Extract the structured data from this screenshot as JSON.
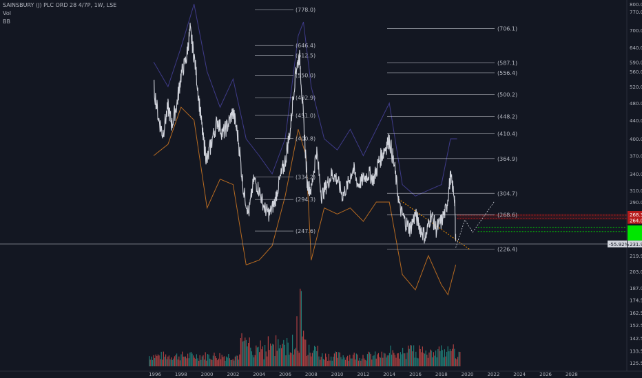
{
  "header": {
    "symbol_line": "SAINSBURY (J) PLC ORD 28 4/7P, 1W, LSE",
    "indicator_1": "Vol",
    "indicator_2": "BB"
  },
  "chart_data": {
    "type": "line",
    "title": "SAINSBURY (J) PLC ORD 28 4/7P, 1W, LSE",
    "indicators": [
      "Vol",
      "BB"
    ],
    "x_ticks": [
      "1996",
      "1998",
      "2000",
      "2002",
      "2004",
      "2006",
      "2008",
      "2010",
      "2012",
      "2014",
      "2016",
      "2018",
      "2020",
      "2022",
      "2024",
      "2026",
      "2028"
    ],
    "y_ticks": [
      "800.0",
      "770.0",
      "700.0",
      "640.0",
      "590.0",
      "560.0",
      "520.0",
      "480.0",
      "440.0",
      "400.0",
      "370.0",
      "340.0",
      "310.0",
      "290.0",
      "268.3",
      "264.0",
      "231.9",
      "219.9",
      "203.0",
      "187.0",
      "174.5",
      "162.5",
      "152.5",
      "142.5",
      "133.5",
      "125.5"
    ],
    "levels_group_1": [
      778.0,
      646.4,
      612.5,
      550.0,
      492.9,
      451.0,
      400.8,
      334.2,
      294.3,
      247.6
    ],
    "levels_group_2": [
      706.1,
      587.1,
      556.4,
      500.2,
      448.2,
      410.4,
      364.9,
      304.7,
      268.6,
      226.4
    ],
    "price_series": {
      "name": "",
      "x": [
        1995.9,
        1996.3,
        1996.6,
        1997.0,
        1997.3,
        1997.7,
        1998.0,
        1998.4,
        1998.7,
        1999.0,
        1999.4,
        1999.7,
        2000.0,
        2000.4,
        2000.8,
        2001.2,
        2001.6,
        2002.0,
        2002.4,
        2002.8,
        2003.2,
        2003.6,
        2004.0,
        2004.4,
        2004.8,
        2005.2,
        2005.6,
        2006.0,
        2006.4,
        2006.8,
        2007.1,
        2007.4,
        2007.7,
        2008.0,
        2008.4,
        2008.8,
        2009.2,
        2009.6,
        2010.0,
        2010.4,
        2010.8,
        2011.2,
        2011.6,
        2012.0,
        2012.4,
        2012.8,
        2013.2,
        2013.6,
        2014.0,
        2014.4,
        2014.8,
        2015.2,
        2015.6,
        2016.0,
        2016.4,
        2016.8,
        2017.2,
        2017.6,
        2018.0,
        2018.4,
        2018.7,
        2019.0,
        2019.1
      ],
      "y": [
        520,
        440,
        410,
        470,
        430,
        480,
        550,
        600,
        700,
        610,
        480,
        400,
        360,
        400,
        440,
        410,
        430,
        460,
        400,
        310,
        270,
        330,
        310,
        280,
        270,
        290,
        330,
        360,
        420,
        560,
        610,
        440,
        320,
        310,
        380,
        300,
        320,
        340,
        330,
        300,
        320,
        350,
        320,
        330,
        340,
        330,
        360,
        380,
        400,
        350,
        280,
        260,
        250,
        270,
        250,
        240,
        270,
        250,
        260,
        280,
        335,
        300,
        235
      ]
    },
    "bb_upper": {
      "x": [
        1995.9,
        1997.0,
        1998.0,
        1999.0,
        2000.0,
        2001.0,
        2002.0,
        2003.0,
        2004.0,
        2005.0,
        2006.0,
        2007.0,
        2007.4,
        2008.0,
        2009.0,
        2010.0,
        2011.0,
        2012.0,
        2013.0,
        2014.0,
        2015.0,
        2016.0,
        2017.0,
        2018.0,
        2018.7,
        2019.2
      ],
      "y": [
        590,
        520,
        640,
        800,
        560,
        470,
        540,
        400,
        370,
        340,
        400,
        680,
        730,
        520,
        400,
        380,
        420,
        370,
        420,
        480,
        320,
        300,
        310,
        320,
        400,
        400
      ]
    },
    "bb_lower": {
      "x": [
        1995.9,
        1997.0,
        1998.0,
        1999.0,
        2000.0,
        2001.0,
        2002.0,
        2003.0,
        2004.0,
        2005.0,
        2006.0,
        2007.0,
        2007.6,
        2008.0,
        2009.0,
        2010.0,
        2011.0,
        2012.0,
        2013.0,
        2014.0,
        2015.0,
        2016.0,
        2017.0,
        2018.0,
        2018.5,
        2019.1
      ],
      "y": [
        370,
        390,
        470,
        440,
        280,
        330,
        320,
        210,
        215,
        230,
        300,
        420,
        370,
        215,
        280,
        270,
        280,
        260,
        290,
        290,
        200,
        185,
        220,
        190,
        180,
        210
      ]
    },
    "price_axis_badges": [
      {
        "label": "268.3",
        "color": "#b71c1c"
      },
      {
        "label": "264.0",
        "color": "#b71c1c"
      },
      {
        "label": "231.9",
        "color": "#d1d4dc"
      }
    ],
    "pct_label": "-55.92%",
    "last_price": "231.9",
    "colors": {
      "background": "#131722",
      "price": "#d1d4dc",
      "bb_upper": "#3f3b8a",
      "bb_lower": "#b86b21",
      "level_line": "#d1d4dc",
      "resistance_zone": "#b71c1c",
      "support_zone": "#00e600",
      "trendline": "#ff9800",
      "volume_up": "#26a69a",
      "volume_down": "#ef5350"
    }
  }
}
